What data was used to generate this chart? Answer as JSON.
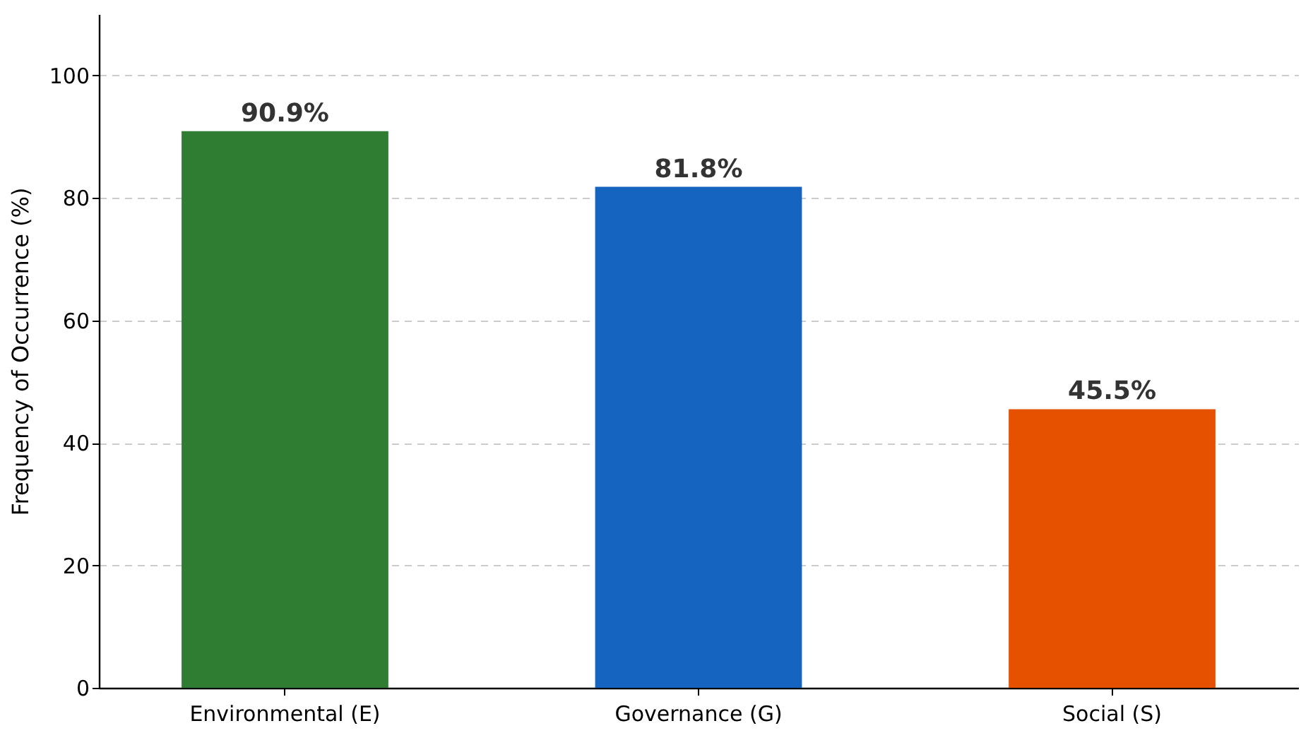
{
  "chart_data": {
    "type": "bar",
    "categories": [
      "Environmental (E)",
      "Governance (G)",
      "Social (S)"
    ],
    "values": [
      90.9,
      81.8,
      45.5
    ],
    "colors": [
      "#2e7d32",
      "#1565c0",
      "#e65100"
    ],
    "value_labels": [
      "90.9%",
      "81.8%",
      "45.5%"
    ],
    "ylabel": "Frequency of Occurrence (%)",
    "ylim": [
      0,
      110
    ],
    "yticks": [
      0,
      20,
      40,
      60,
      80,
      100
    ],
    "grid": "y"
  }
}
